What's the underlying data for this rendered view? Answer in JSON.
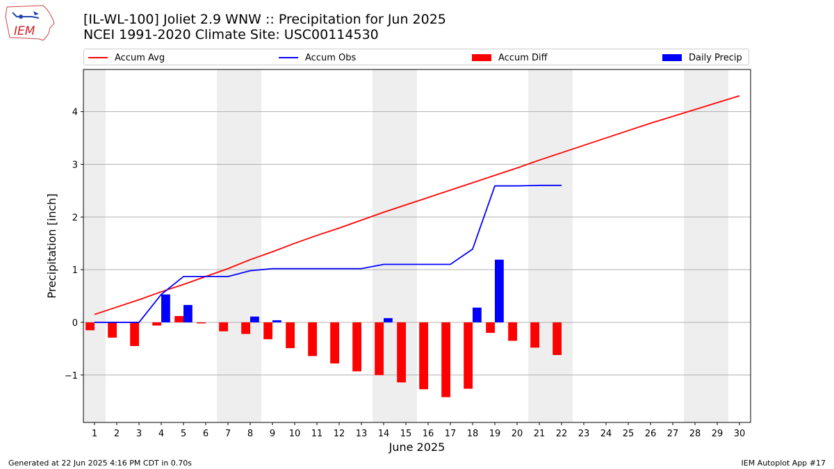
{
  "header": {
    "title_line1": "[IL-WL-100] Joliet 2.9 WNW :: Precipitation for Jun 2025",
    "title_line2": "NCEI 1991-2020 Climate Site: USC00114530",
    "logo_text": "IEM"
  },
  "footer": {
    "generated": "Generated at 22 Jun 2025 4:16 PM CDT in 0.70s",
    "app": "IEM Autoplot App #17"
  },
  "chart_data": {
    "type": "bar",
    "xlabel": "June 2025",
    "ylabel": "Precipitation [inch]",
    "xlim": [
      0.5,
      30.5
    ],
    "ylim": [
      -1.9,
      4.8
    ],
    "x_ticks": [
      1,
      2,
      3,
      4,
      5,
      6,
      7,
      8,
      9,
      10,
      11,
      12,
      13,
      14,
      15,
      16,
      17,
      18,
      19,
      20,
      21,
      22,
      23,
      24,
      25,
      26,
      27,
      28,
      29,
      30
    ],
    "y_ticks": [
      -1,
      0,
      1,
      2,
      3,
      4
    ],
    "y_tick_labels": [
      "−1",
      "0",
      "1",
      "2",
      "3",
      "4"
    ],
    "grid": "horizontal",
    "weekend_shading": [
      [
        0.5,
        1.5
      ],
      [
        6.5,
        8.5
      ],
      [
        13.5,
        15.5
      ],
      [
        20.5,
        22.5
      ],
      [
        27.5,
        29.5
      ]
    ],
    "legend": [
      "Accum Avg",
      "Accum Obs",
      "Accum Diff",
      "Daily Precip"
    ],
    "legend_position": "top",
    "colors": {
      "accum_avg": "#ff0000",
      "accum_obs": "#0000ff",
      "accum_diff": "#ff0000",
      "daily_precip": "#0000ff",
      "shade": "#eeeeee"
    },
    "days": [
      1,
      2,
      3,
      4,
      5,
      6,
      7,
      8,
      9,
      10,
      11,
      12,
      13,
      14,
      15,
      16,
      17,
      18,
      19,
      20,
      21,
      22,
      23,
      24,
      25,
      26,
      27,
      28,
      29,
      30
    ],
    "series": [
      {
        "name": "Accum Avg",
        "kind": "line",
        "values": [
          0.15,
          0.29,
          0.43,
          0.58,
          0.72,
          0.87,
          1.02,
          1.19,
          1.34,
          1.5,
          1.65,
          1.79,
          1.94,
          2.09,
          2.23,
          2.37,
          2.51,
          2.65,
          2.79,
          2.93,
          3.08,
          3.22,
          3.36,
          3.5,
          3.64,
          3.78,
          3.91,
          4.04,
          4.17,
          4.3
        ]
      },
      {
        "name": "Accum Obs",
        "kind": "line",
        "values": [
          0.0,
          0.0,
          0.0,
          0.53,
          0.87,
          0.87,
          0.87,
          0.98,
          1.02,
          1.02,
          1.02,
          1.02,
          1.02,
          1.1,
          1.1,
          1.1,
          1.1,
          1.39,
          2.59,
          2.59,
          2.6,
          2.6
        ]
      },
      {
        "name": "Accum Diff",
        "kind": "bar",
        "values": [
          -0.15,
          -0.29,
          -0.45,
          -0.06,
          0.12,
          -0.02,
          -0.17,
          -0.22,
          -0.32,
          -0.49,
          -0.64,
          -0.78,
          -0.93,
          -1.0,
          -1.14,
          -1.27,
          -1.42,
          -1.26,
          -0.2,
          -0.35,
          -0.48,
          -0.62
        ]
      },
      {
        "name": "Daily Precip",
        "kind": "bar",
        "values": [
          0.0,
          0.0,
          0.0,
          0.53,
          0.33,
          0.0,
          0.0,
          0.11,
          0.04,
          0.0,
          0.0,
          0.0,
          0.0,
          0.08,
          0.0,
          0.0,
          0.0,
          0.28,
          1.19,
          0.0,
          0.0,
          0.0
        ]
      }
    ]
  }
}
